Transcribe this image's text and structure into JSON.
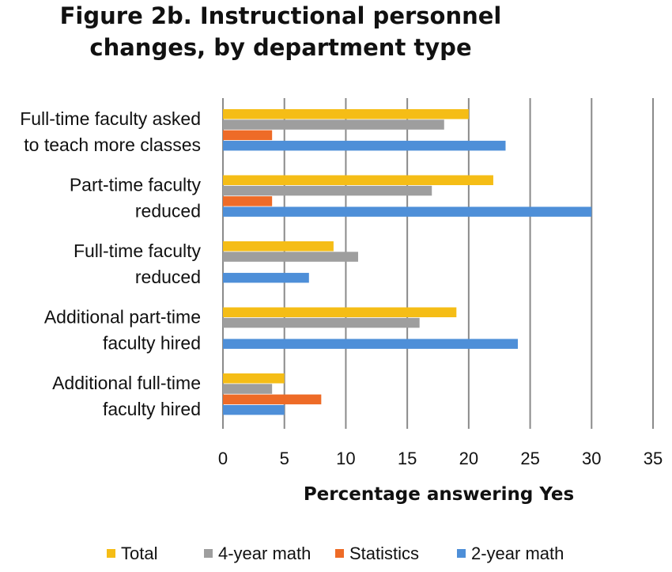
{
  "chart_data": {
    "type": "bar",
    "orientation": "horizontal",
    "title": "Figure 2b. Instructional personnel changes, by department type",
    "title_lines": [
      "Figure 2b. Instructional personnel",
      "changes, by department type"
    ],
    "xlabel": "Percentage answering Yes",
    "ylabel": "",
    "xlim": [
      0,
      35
    ],
    "xticks": [
      0,
      5,
      10,
      15,
      20,
      25,
      30,
      35
    ],
    "grid": true,
    "legend": "bottom",
    "categories": [
      [
        "Full-time faculty asked",
        "to teach more classes"
      ],
      [
        "Part-time faculty",
        "reduced"
      ],
      [
        "Full-time faculty",
        "reduced"
      ],
      [
        "Additional part-time",
        "faculty hired"
      ],
      [
        "Additional full-time",
        "faculty hired"
      ]
    ],
    "series": [
      {
        "name": "Total",
        "color": "#f5bd16",
        "values": [
          20,
          22,
          9,
          19,
          5
        ]
      },
      {
        "name": "4-year math",
        "color": "#9e9e9e",
        "values": [
          18,
          17,
          11,
          16,
          4
        ]
      },
      {
        "name": "Statistics",
        "color": "#ee6b27",
        "values": [
          4,
          4,
          0,
          0,
          8
        ]
      },
      {
        "name": "2-year math",
        "color": "#4e8fd8",
        "values": [
          23,
          30,
          7,
          24,
          5
        ]
      }
    ]
  }
}
